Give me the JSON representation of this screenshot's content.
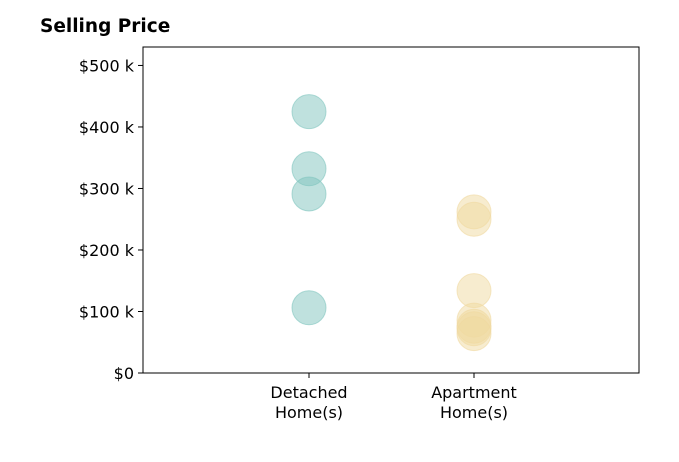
{
  "chart_data": {
    "type": "scatter",
    "title": "Selling Price",
    "xlabel": "",
    "ylabel": "",
    "categories": [
      "Detached\nHome(s)",
      "Apartment\nHome(s)"
    ],
    "ylim": [
      0,
      530000
    ],
    "yticks": [
      {
        "value": 0,
        "label": "$0"
      },
      {
        "value": 100000,
        "label": "$100 k"
      },
      {
        "value": 200000,
        "label": "$200 k"
      },
      {
        "value": 300000,
        "label": "$300 k"
      },
      {
        "value": 400000,
        "label": "$400 k"
      },
      {
        "value": 500000,
        "label": "$500 k"
      }
    ],
    "series": [
      {
        "category": "Detached\nHome(s)",
        "color": "#7fc4be",
        "values": [
          425000,
          332000,
          291000,
          106000
        ]
      },
      {
        "category": "Apartment\nHome(s)",
        "color": "#f0d9a0",
        "values": [
          262000,
          250000,
          134000,
          86000,
          76000,
          72000,
          64000
        ]
      }
    ],
    "grid": false,
    "legend": "none"
  }
}
